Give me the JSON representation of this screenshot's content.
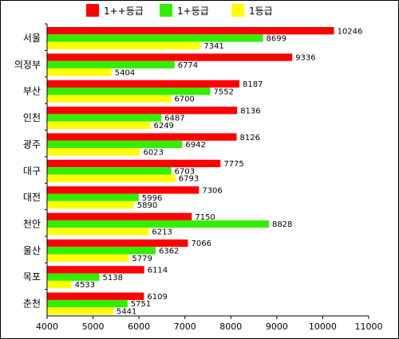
{
  "chart_data": {
    "type": "bar",
    "orientation": "horizontal",
    "categories": [
      "서울",
      "의정부",
      "부산",
      "인천",
      "광주",
      "대구",
      "대전",
      "천안",
      "울산",
      "목포",
      "춘천"
    ],
    "series": [
      {
        "name": "1++등급",
        "color": "#ff0000",
        "values": [
          10246,
          9336,
          8187,
          8136,
          8126,
          7775,
          7306,
          7150,
          7066,
          6114,
          6109
        ]
      },
      {
        "name": "1+등급",
        "color": "#33ee00",
        "values": [
          8699,
          6774,
          7552,
          6487,
          6942,
          6703,
          5996,
          8828,
          6362,
          5138,
          5751
        ]
      },
      {
        "name": "1등급",
        "color": "#ffff00",
        "values": [
          7341,
          5404,
          6700,
          6249,
          6023,
          6793,
          5890,
          6213,
          5779,
          4533,
          5441
        ]
      }
    ],
    "xlim": [
      4000,
      11000
    ],
    "xticks": [
      4000,
      5000,
      6000,
      7000,
      8000,
      9000,
      10000,
      11000
    ],
    "title": "",
    "xlabel": "",
    "ylabel": "",
    "grid": false,
    "legend": "top"
  }
}
